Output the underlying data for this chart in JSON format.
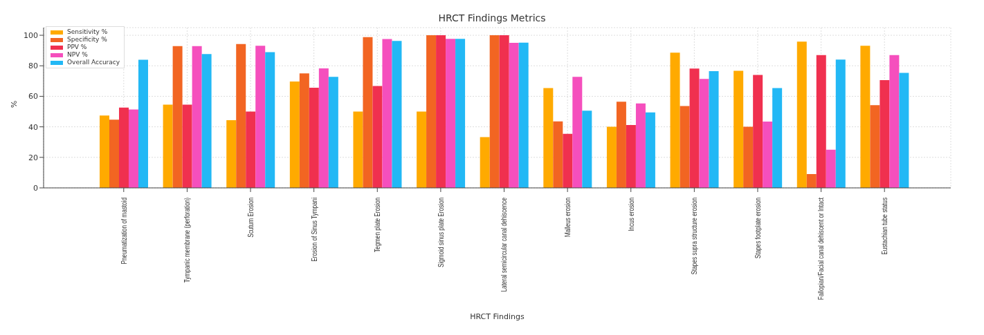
{
  "chart_data": {
    "type": "bar",
    "title": "HRCT Findings Metrics",
    "xlabel": "HRCT Findings",
    "ylabel": "%",
    "categories": [
      "Pneumatization of mastoid",
      "Tympanic membrane (perforation)",
      "Scutum Erosion",
      "Erosion of Sinus Tympani",
      "Tegmen plate Erosion",
      "Sigmoid sinus plate Erosion",
      "Lateral semicircular canal dehiscence",
      "Malleus erosion",
      "Incus erosion",
      "Stapes supra structure erosion",
      "Stapes footplate erosion",
      "Fallopian/Facial canal dehiscent or Intact",
      "Eustachian tube status"
    ],
    "series": [
      {
        "name": "Sensitivity %",
        "color": "#ffaa00",
        "values": [
          47.4,
          54.5,
          44.4,
          69.7,
          50,
          50,
          33.3,
          65.4,
          40,
          88.6,
          76.7,
          95.8,
          93.1
        ]
      },
      {
        "name": "Specificity %",
        "color": "#f26522",
        "values": [
          44.7,
          92.9,
          94.3,
          75,
          98.8,
          100,
          100,
          43.6,
          56.5,
          53.6,
          40,
          9,
          54.2
        ]
      },
      {
        "name": "PPV %",
        "color": "#f0304f",
        "values": [
          52.6,
          54.5,
          50,
          65.6,
          66.7,
          100,
          100,
          35.4,
          41.2,
          78.2,
          74,
          87,
          70.6
        ]
      },
      {
        "name": "NPV %",
        "color": "#f54fbd",
        "values": [
          51.4,
          92.9,
          93.1,
          78.3,
          97.5,
          97.6,
          95,
          72.7,
          55.3,
          71.4,
          43.5,
          25,
          87
        ]
      },
      {
        "name": "Overall Accuracy",
        "color": "#22b8f5",
        "values": [
          84,
          87.7,
          88.9,
          72.7,
          96.3,
          97.6,
          95.1,
          50.6,
          49.4,
          76.5,
          65.4,
          84.1,
          75.3
        ]
      }
    ],
    "ylim": [
      0,
      105
    ],
    "yticks": [
      0,
      20,
      40,
      60,
      80,
      100
    ],
    "grid": true,
    "legend": "top left"
  }
}
